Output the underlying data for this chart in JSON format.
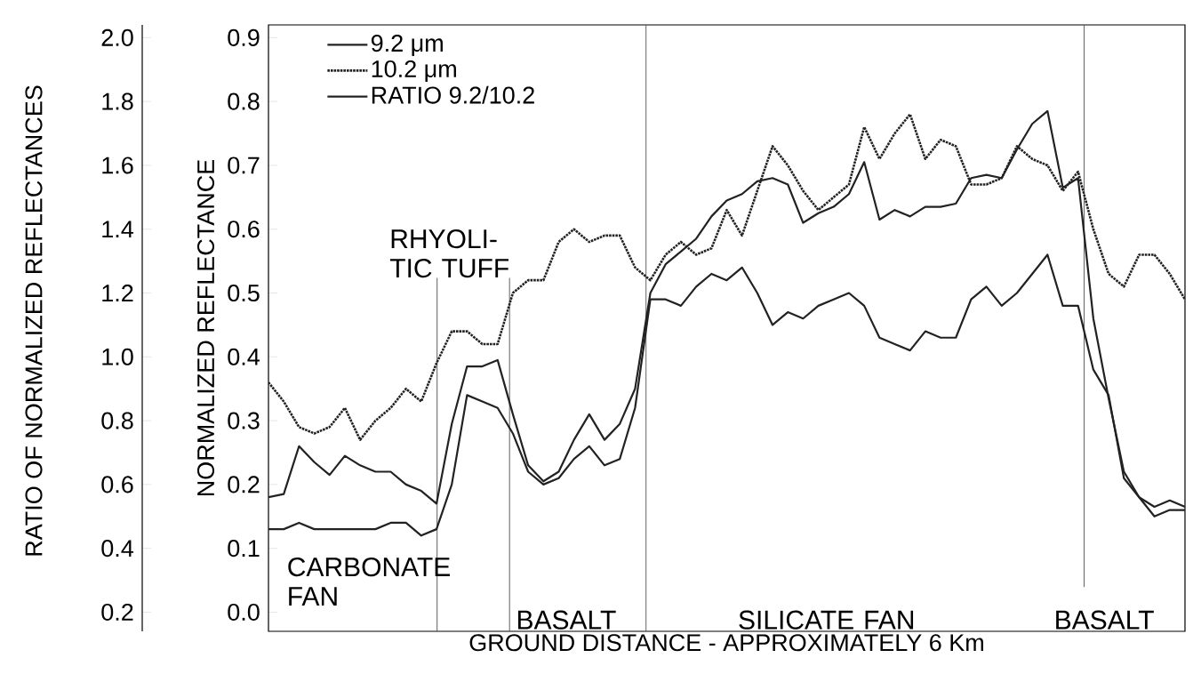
{
  "chart_data": {
    "type": "line",
    "xlabel": "GROUND DISTANCE - APPROXIMATELY 6 Km",
    "ylabel": "NORMALIZED REFLECTANCE",
    "y2label": "RATIO OF NORMALIZED REFLECTANCES",
    "categories": [
      null,
      null,
      null,
      null,
      null,
      null,
      null,
      null,
      null,
      null,
      null,
      null,
      null,
      null,
      null,
      null,
      null,
      null,
      null,
      null,
      null,
      null,
      null,
      null,
      null,
      null,
      null,
      null,
      null,
      null,
      null,
      null,
      null,
      null,
      null,
      null,
      null,
      null,
      null,
      null,
      null,
      null,
      null,
      null,
      null,
      null,
      null,
      null,
      null,
      null,
      null,
      null,
      null,
      null,
      null,
      null,
      null,
      null,
      null,
      null,
      null
    ],
    "series": [
      {
        "name": "9.2 μm",
        "color": "#222222",
        "line_style": "solid",
        "values": [
          0.13,
          0.13,
          0.14,
          0.13,
          0.13,
          0.13,
          0.13,
          0.13,
          0.14,
          0.14,
          0.12,
          0.13,
          0.2,
          0.34,
          0.33,
          0.32,
          0.28,
          0.22,
          0.2,
          0.21,
          0.24,
          0.26,
          0.23,
          0.24,
          0.32,
          0.49,
          0.49,
          0.48,
          0.51,
          0.53,
          0.52,
          0.54,
          0.5,
          0.45,
          0.47,
          0.46,
          0.48,
          0.49,
          0.5,
          0.48,
          0.43,
          0.42,
          0.41,
          0.44,
          0.43,
          0.43,
          0.49,
          0.51,
          0.48,
          0.5,
          0.53,
          0.56,
          0.48,
          0.48,
          0.38,
          0.34,
          0.21,
          0.18,
          0.15,
          0.16,
          0.16
        ]
      },
      {
        "name": "10.2 μm",
        "color": "#222222",
        "line_style": "dotted",
        "values": [
          0.36,
          0.33,
          0.29,
          0.28,
          0.29,
          0.32,
          0.27,
          0.3,
          0.32,
          0.35,
          0.33,
          0.39,
          0.44,
          0.44,
          0.42,
          0.42,
          0.5,
          0.52,
          0.52,
          0.58,
          0.6,
          0.58,
          0.59,
          0.59,
          0.54,
          0.52,
          0.56,
          0.58,
          0.56,
          0.57,
          0.63,
          0.59,
          0.66,
          0.73,
          0.7,
          0.66,
          0.63,
          0.65,
          0.67,
          0.76,
          0.71,
          0.75,
          0.78,
          0.71,
          0.74,
          0.73,
          0.67,
          0.67,
          0.68,
          0.73,
          0.71,
          0.7,
          0.66,
          0.69,
          0.6,
          0.53,
          0.51,
          0.56,
          0.56,
          0.53,
          0.49
        ]
      },
      {
        "name": "RATIO 9.2/10.2",
        "color": "#222222",
        "line_style": "solid",
        "axis": "y2",
        "values": [
          0.56,
          0.57,
          0.72,
          0.67,
          0.63,
          0.69,
          0.66,
          0.64,
          0.64,
          0.6,
          0.58,
          0.54,
          0.79,
          0.97,
          0.97,
          0.99,
          0.82,
          0.66,
          0.61,
          0.64,
          0.74,
          0.82,
          0.74,
          0.79,
          0.9,
          1.2,
          1.29,
          1.33,
          1.37,
          1.44,
          1.49,
          1.51,
          1.55,
          1.56,
          1.54,
          1.42,
          1.45,
          1.47,
          1.51,
          1.61,
          1.43,
          1.46,
          1.44,
          1.47,
          1.47,
          1.48,
          1.56,
          1.57,
          1.56,
          1.65,
          1.73,
          1.77,
          1.53,
          1.56,
          1.12,
          0.87,
          0.64,
          0.56,
          0.53,
          0.55,
          0.53
        ]
      }
    ],
    "ylim": [
      -0.03,
      0.92
    ],
    "yticks": [
      {
        "value": 0,
        "label": "0.0"
      },
      0.1,
      0.2,
      0.3,
      0.4,
      0.5,
      0.6,
      0.7,
      0.8,
      0.9
    ],
    "y2lim": [
      0.14,
      2.04
    ],
    "y2ticks": [
      0.2,
      0.4,
      0.6,
      0.8,
      {
        "value": 1,
        "label": "1.0"
      },
      1.2,
      1.4,
      1.6,
      1.8,
      {
        "value": 2,
        "label": "2.0"
      }
    ],
    "annotations": [
      "CARBONATE FAN",
      "RHYOLI-TIC TUFF",
      "BASALT",
      "SILICATE FAN",
      "BASALT"
    ],
    "legend": "top left",
    "grid": false
  }
}
